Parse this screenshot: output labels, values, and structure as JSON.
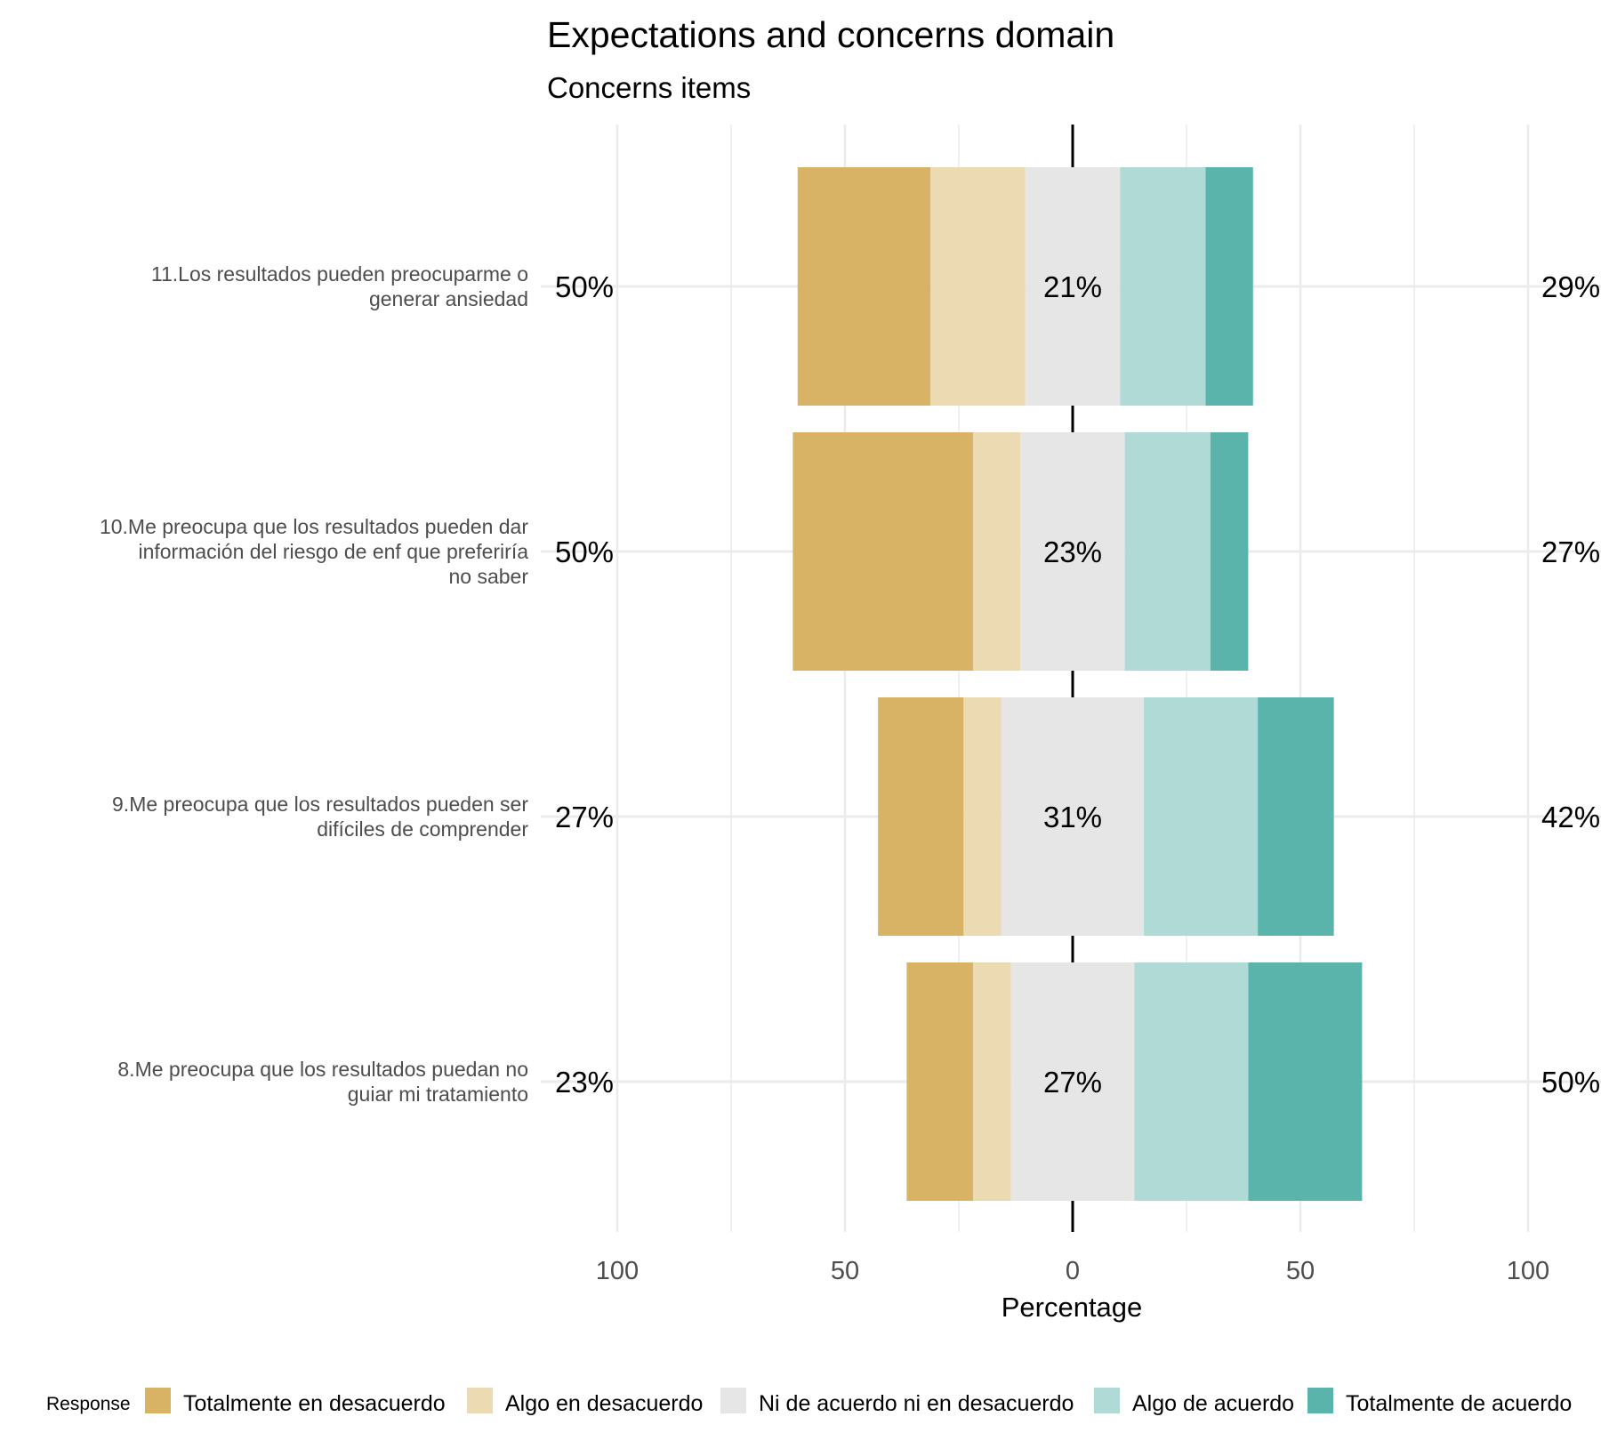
{
  "chart_data": {
    "type": "bar",
    "orientation": "horizontal-diverging",
    "title": "Expectations and concerns domain",
    "subtitle": "Concerns items",
    "xlabel": "Percentage",
    "xlim": [
      -100,
      100
    ],
    "xticks": [
      {
        "value": -100,
        "label": "100"
      },
      {
        "value": -50,
        "label": "50"
      },
      {
        "value": 0,
        "label": "0"
      },
      {
        "value": 50,
        "label": "50"
      },
      {
        "value": 100,
        "label": "100"
      }
    ],
    "grid": true,
    "legend": {
      "title": "Response",
      "position": "bottom"
    },
    "series": [
      {
        "name": "Totalmente en desacuerdo",
        "color": "#D8B365"
      },
      {
        "name": "Algo en desacuerdo",
        "color": "#ECDAB2"
      },
      {
        "name": "Ni de acuerdo ni en desacuerdo",
        "color": "#E6E6E6"
      },
      {
        "name": "Algo de acuerdo",
        "color": "#AFDAD6"
      },
      {
        "name": "Totalmente de acuerdo",
        "color": "#5AB4AC"
      }
    ],
    "categories": [
      {
        "label_lines": [
          "11.Los resultados pueden preocuparme o",
          "generar ansiedad"
        ],
        "values": [
          29.2,
          20.8,
          20.8,
          18.8,
          10.4
        ],
        "left_label": "50%",
        "center_label": "21%",
        "right_label": "29%"
      },
      {
        "label_lines": [
          "10.Me preocupa que los resultados pueden dar",
          "información del riesgo de enf que preferiría",
          "no saber"
        ],
        "values": [
          39.6,
          10.4,
          22.9,
          18.8,
          8.3
        ],
        "left_label": "50%",
        "center_label": "23%",
        "right_label": "27%"
      },
      {
        "label_lines": [
          "9.Me preocupa que los resultados pueden ser",
          "difíciles de comprender"
        ],
        "values": [
          18.8,
          8.3,
          31.3,
          25.0,
          16.7
        ],
        "left_label": "27%",
        "center_label": "31%",
        "right_label": "42%"
      },
      {
        "label_lines": [
          "8.Me preocupa que los resultados puedan no",
          "guiar mi tratamiento"
        ],
        "values": [
          14.6,
          8.3,
          27.1,
          25.0,
          25.0
        ],
        "left_label": "23%",
        "center_label": "27%",
        "right_label": "50%"
      }
    ]
  }
}
